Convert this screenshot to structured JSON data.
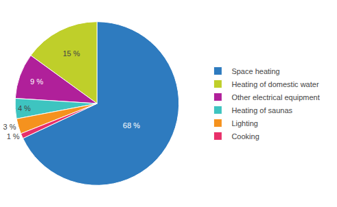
{
  "chart_data": {
    "type": "pie",
    "categories": [
      "Space heating",
      "Heating of domestic water",
      "Other electrical equipment",
      "Heating of saunas",
      "Lighting",
      "Cooking"
    ],
    "values": [
      68,
      15,
      9,
      4,
      3,
      1
    ],
    "value_labels": [
      "68 %",
      "15 %",
      "9 %",
      "4 %",
      "3 %",
      "1 %"
    ],
    "colors": [
      "#2E7BBF",
      "#BFCF2A",
      "#B0209A",
      "#3EC4C0",
      "#F5921E",
      "#E8306A"
    ],
    "data_labels": true,
    "legend": "right"
  }
}
